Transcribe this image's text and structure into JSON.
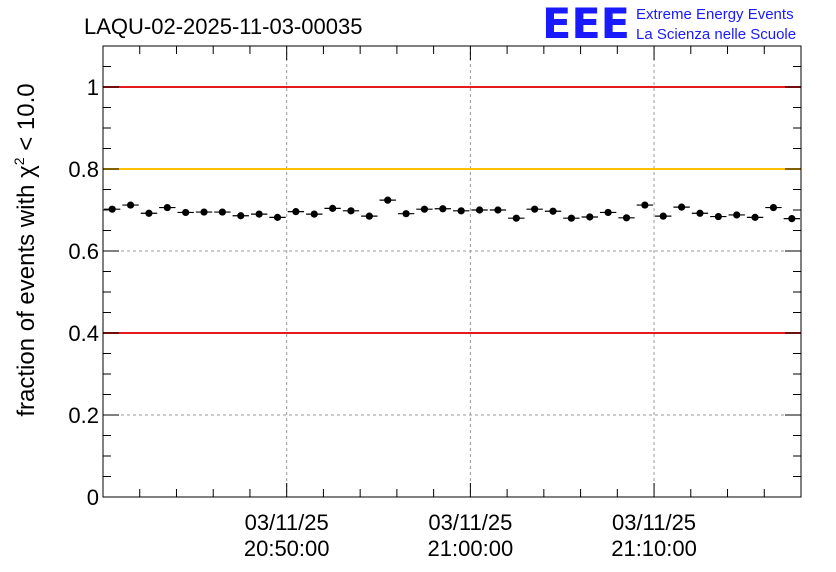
{
  "header": {
    "title": "LAQU-02-2025-11-03-00035",
    "logo_text": "EEE",
    "logo_line1": "Extreme Energy Events",
    "logo_line2": "La Scienza nelle Scuole"
  },
  "colors": {
    "logo_blue": "#1a1aff",
    "red_line": "#e41a1c",
    "yellow_line": "#ffc000",
    "marker": "#000000"
  },
  "chart_data": {
    "type": "scatter",
    "title": "LAQU-02-2025-11-03-00035",
    "xlabel": "",
    "ylabel": "fraction of events with χ² < 10.0",
    "ylabel_parts": {
      "pre": "fraction of events with ",
      "chi": "χ",
      "sup": "2",
      "post": " < 10.0"
    },
    "xlim": [
      "20:40:00",
      "21:18:00"
    ],
    "ylim": [
      0,
      1.1
    ],
    "yticks": [
      0,
      0.2,
      0.4,
      0.6,
      0.8,
      1
    ],
    "ytick_labels": [
      "0",
      "0.2",
      "0.4",
      "0.6",
      "0.8",
      "1"
    ],
    "xticks": [
      {
        "time": "20:50:00",
        "date_label": "03/11/25",
        "time_label": "20:50:00"
      },
      {
        "time": "21:00:00",
        "date_label": "03/11/25",
        "time_label": "21:00:00"
      },
      {
        "time": "21:10:00",
        "date_label": "03/11/25",
        "time_label": "21:10:00"
      }
    ],
    "grid": true,
    "reference_lines": [
      {
        "y": 1.0,
        "color": "#e41a1c"
      },
      {
        "y": 0.8,
        "color": "#ffc000"
      },
      {
        "y": 0.4,
        "color": "#e41a1c"
      }
    ],
    "bin_width_seconds": 60,
    "x": [
      "20:40:30",
      "20:41:30",
      "20:42:30",
      "20:43:30",
      "20:44:30",
      "20:45:30",
      "20:46:30",
      "20:47:30",
      "20:48:30",
      "20:49:30",
      "20:50:30",
      "20:51:30",
      "20:52:30",
      "20:53:30",
      "20:54:30",
      "20:55:30",
      "20:56:30",
      "20:57:30",
      "20:58:30",
      "20:59:30",
      "21:00:30",
      "21:01:30",
      "21:02:30",
      "21:03:30",
      "21:04:30",
      "21:05:30",
      "21:06:30",
      "21:07:30",
      "21:08:30",
      "21:09:30",
      "21:10:30",
      "21:11:30",
      "21:12:30",
      "21:13:30",
      "21:14:30",
      "21:15:30",
      "21:16:30",
      "21:17:30"
    ],
    "y": [
      0.702,
      0.712,
      0.692,
      0.706,
      0.694,
      0.695,
      0.695,
      0.686,
      0.69,
      0.682,
      0.696,
      0.69,
      0.704,
      0.698,
      0.685,
      0.724,
      0.691,
      0.702,
      0.703,
      0.698,
      0.7,
      0.7,
      0.68,
      0.702,
      0.697,
      0.68,
      0.683,
      0.694,
      0.681,
      0.712,
      0.685,
      0.707,
      0.692,
      0.684,
      0.688,
      0.682,
      0.706,
      0.679
    ],
    "yerr": [
      0.008,
      0.008,
      0.008,
      0.008,
      0.008,
      0.008,
      0.008,
      0.008,
      0.008,
      0.008,
      0.008,
      0.008,
      0.008,
      0.008,
      0.008,
      0.008,
      0.008,
      0.008,
      0.008,
      0.008,
      0.008,
      0.008,
      0.008,
      0.008,
      0.008,
      0.008,
      0.008,
      0.008,
      0.008,
      0.008,
      0.008,
      0.008,
      0.008,
      0.008,
      0.008,
      0.008,
      0.008,
      0.008
    ]
  }
}
